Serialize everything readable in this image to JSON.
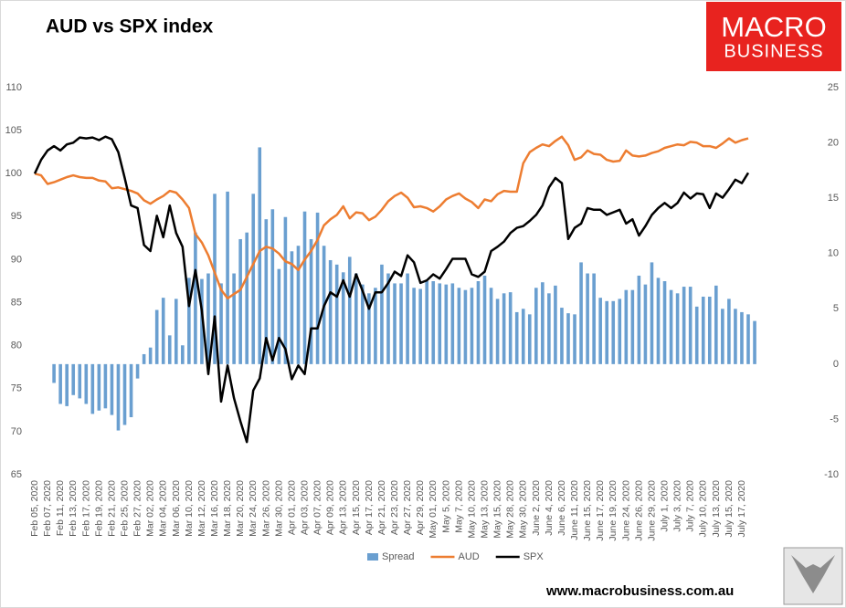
{
  "logo": {
    "line1": "MACRO",
    "line2": "BUSINESS"
  },
  "chart_data": {
    "type": "combo",
    "title": "AUD vs SPX index",
    "source": "www.macrobusiness.com.au",
    "categories": [
      "Feb 05, 2020",
      null,
      "Feb 07, 2020",
      null,
      "Feb 11, 2020",
      null,
      "Feb 13, 2020",
      null,
      "Feb 17, 2020",
      null,
      "Feb 19, 2020",
      null,
      "Feb 21, 2020",
      null,
      "Feb 25, 2020",
      null,
      "Feb 27, 2020",
      null,
      "Mar 02, 2020",
      null,
      "Mar 04, 2020",
      null,
      "Mar 06, 2020",
      null,
      "Mar 10, 2020",
      null,
      "Mar 12, 2020",
      null,
      "Mar 16, 2020",
      null,
      "Mar 18, 2020",
      null,
      "Mar 20, 2020",
      null,
      "Mar 24, 2020",
      null,
      "Mar 26, 2020",
      null,
      "Mar 30, 2020",
      null,
      "Apr 01, 2020",
      null,
      "Apr 03, 2020",
      null,
      "Apr 07, 2020",
      null,
      "Apr 09, 2020",
      null,
      "Apr 13, 2020",
      null,
      "Apr 15, 2020",
      null,
      "Apr 17, 2020",
      null,
      "Apr 21, 2020",
      null,
      "Apr 23, 2020",
      null,
      "Apr 27, 2020",
      null,
      "Apr 29, 2020",
      null,
      "May 01, 2020",
      null,
      "May 5, 2020",
      null,
      "May 7, 2020",
      null,
      "May 10, 2020",
      null,
      "May 13, 2020",
      null,
      "May 15, 2020",
      null,
      "May 28, 2020",
      null,
      "May 30, 2020",
      null,
      "June 2, 2020",
      null,
      "June 4, 2020",
      null,
      "June 6, 2020",
      null,
      "June 11, 2020",
      null,
      "June 15, 2020",
      null,
      "June 17, 2020",
      null,
      "June 19, 2020",
      null,
      "June 24, 2020",
      null,
      "June 26, 2020",
      null,
      "June 29, 2020",
      null,
      "July 1, 2020",
      null,
      "July 3, 2020",
      null,
      "July 7, 2020",
      null,
      "July 10, 2020",
      null,
      "July 13, 2020",
      null,
      "July 15, 2020",
      null,
      "July 17, 2020",
      null,
      null
    ],
    "series": [
      {
        "name": "Spread",
        "kind": "bar",
        "axis": "y2",
        "color": "#6a9fd0",
        "values": [
          null,
          null,
          null,
          -1.7,
          -3.6,
          -3.8,
          -2.8,
          -3.1,
          -3.6,
          -4.5,
          -4.2,
          -4,
          -4.6,
          -6,
          -5.5,
          -4.8,
          -1.3,
          0.9,
          1.5,
          4.9,
          6,
          2.6,
          5.9,
          1.7,
          7.8,
          11.9,
          7.7,
          8.2,
          15.4,
          7.3,
          15.6,
          8.2,
          11.3,
          11.9,
          15.4,
          19.6,
          13.1,
          14,
          8.6,
          13.3,
          10.2,
          10.7,
          13.8,
          11.3,
          13.7,
          10.7,
          9.4,
          9,
          8.3,
          9.7,
          8.2,
          7.2,
          6.4,
          6.9,
          9,
          8.2,
          7.3,
          7.3,
          8.2,
          6.9,
          6.8,
          7.5,
          7.5,
          7.3,
          7.2,
          7.3,
          6.9,
          6.7,
          6.9,
          7.5,
          8,
          6.9,
          5.9,
          6.4,
          6.5,
          4.7,
          5,
          4.5,
          6.9,
          7.4,
          6.4,
          7.1,
          5.1,
          4.6,
          4.5,
          9.2,
          8.2,
          8.2,
          6,
          5.7,
          5.7,
          5.9,
          6.7,
          6.7,
          8,
          7.2,
          9.2,
          7.8,
          7.5,
          6.7,
          6.4,
          7,
          7,
          5.2,
          6.1,
          6.1,
          7.1,
          5,
          5.9,
          5,
          4.7,
          4.5,
          3.9
        ]
      },
      {
        "name": "AUD",
        "kind": "line",
        "axis": "y",
        "color": "#ed7d31",
        "values": [
          100,
          99.8,
          98.8,
          99,
          99.3,
          99.6,
          99.8,
          99.6,
          99.5,
          99.5,
          99.2,
          99.1,
          98.3,
          98.4,
          98.2,
          98,
          97.7,
          96.9,
          96.5,
          97,
          97.4,
          98,
          97.8,
          97,
          96,
          93,
          92,
          90.5,
          88.5,
          86.5,
          85.5,
          86,
          86.5,
          88,
          89.5,
          91,
          91.5,
          91.3,
          90.7,
          89.8,
          89.5,
          88.8,
          90,
          91,
          92.3,
          94,
          94.7,
          95.2,
          96.2,
          94.8,
          95.5,
          95.4,
          94.6,
          95,
          95.8,
          96.8,
          97.4,
          97.8,
          97.2,
          96.1,
          96.2,
          96,
          95.6,
          96.2,
          97,
          97.4,
          97.7,
          97.1,
          96.7,
          96,
          97,
          96.8,
          97.6,
          98,
          97.9,
          97.9,
          101.2,
          102.5,
          103,
          103.4,
          103.2,
          103.8,
          104.3,
          103.3,
          101.6,
          101.9,
          102.7,
          102.3,
          102.2,
          101.6,
          101.4,
          101.5,
          102.7,
          102.1,
          102,
          102.1,
          102.4,
          102.6,
          103,
          103.2,
          103.4,
          103.3,
          103.7,
          103.6,
          103.2,
          103.2,
          103,
          103.5,
          104.1,
          103.6,
          103.9,
          104.1,
          null
        ]
      },
      {
        "name": "SPX",
        "kind": "line",
        "axis": "y",
        "color": "#000000",
        "values": [
          100,
          101.6,
          102.7,
          103.2,
          102.7,
          103.4,
          103.6,
          104.2,
          104.1,
          104.2,
          103.9,
          104.3,
          104,
          102.5,
          99.5,
          96.3,
          96,
          91.7,
          91,
          95.1,
          92.6,
          96.3,
          93.1,
          91.5,
          84.6,
          88.8,
          84.1,
          76.7,
          83.4,
          73.5,
          77.7,
          73.9,
          71.2,
          68.8,
          74.8,
          76.2,
          80.9,
          78.3,
          80.9,
          79.6,
          76.1,
          77.7,
          76.7,
          82,
          82,
          84.6,
          86.2,
          85.7,
          87.6,
          85.7,
          88.3,
          86.4,
          84.3,
          86.2,
          86.2,
          87.3,
          88.6,
          88.1,
          90.5,
          89.7,
          87.3,
          87.6,
          88.3,
          87.8,
          88.9,
          90.1,
          90.1,
          90.1,
          88.3,
          88,
          88.6,
          91,
          91.5,
          92.1,
          93.1,
          93.7,
          93.9,
          94.5,
          95.2,
          96.3,
          98.4,
          99.5,
          98.9,
          92.4,
          93.7,
          94.2,
          96,
          95.8,
          95.8,
          95.2,
          95.5,
          95.8,
          94.2,
          94.7,
          92.8,
          93.9,
          95.2,
          96,
          96.6,
          96,
          96.6,
          97.8,
          97.1,
          97.7,
          97.6,
          96,
          97.7,
          97.2,
          98.2,
          99.3,
          98.9,
          100.1,
          null
        ]
      }
    ],
    "ylim": [
      65,
      110
    ],
    "yticks": [
      65,
      70,
      75,
      80,
      85,
      90,
      95,
      100,
      105,
      110
    ],
    "y2lim": [
      -10,
      25
    ],
    "y2ticks": [
      -10,
      -5,
      0,
      5,
      10,
      15,
      20,
      25
    ],
    "grid": false,
    "legend": "bottom"
  }
}
